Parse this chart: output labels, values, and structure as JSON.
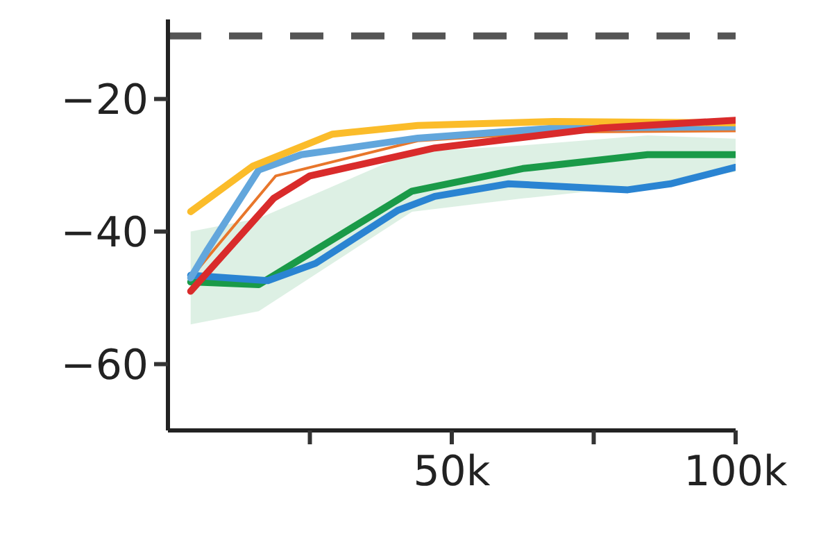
{
  "chart_data": {
    "type": "line",
    "marker": "none",
    "xlim": [
      0,
      100000
    ],
    "xticks": [
      {
        "value": 25000,
        "label": null
      },
      {
        "value": 50000,
        "label": "50k"
      },
      {
        "value": 75000,
        "label": null
      },
      {
        "value": 100000,
        "label": "100k"
      }
    ],
    "ylim": [
      -70,
      -8
    ],
    "yticks": [
      {
        "value": -20,
        "label": "−20"
      },
      {
        "value": -40,
        "label": "−40"
      },
      {
        "value": -60,
        "label": "−60"
      }
    ],
    "ref_lines": [
      {
        "axis": "y",
        "value": -10.5,
        "color": "#555555",
        "line_style": "dashed"
      }
    ],
    "series": [
      {
        "color": "#1a9a48",
        "x": [
          4000,
          16000,
          43000,
          62500,
          84500,
          100000
        ],
        "values": [
          -47.6,
          -48,
          -33.9,
          -30.5,
          -28.4,
          -28.4
        ],
        "lower": [
          -54,
          -52,
          -37,
          -35,
          -33,
          -31
        ],
        "upper": [
          -40,
          -38,
          -28,
          -27,
          -25.5,
          -26
        ]
      },
      {
        "color": "#2a84d2",
        "x": [
          4000,
          17600,
          26000,
          40500,
          47000,
          60000,
          81000,
          88500,
          100000
        ],
        "values": [
          -46.6,
          -47.4,
          -44.8,
          -36.8,
          -34.7,
          -32.8,
          -33.7,
          -32.8,
          -30.3
        ]
      },
      {
        "color": "#e8762b",
        "x": [
          4000,
          7000,
          19000,
          44000,
          68000,
          100000
        ],
        "values": [
          -47,
          -43.9,
          -31.6,
          -26.3,
          -25,
          -24.8
        ]
      },
      {
        "color": "#62a6dc",
        "x": [
          4000,
          7000,
          16000,
          23500,
          44000,
          68000,
          100000
        ],
        "values": [
          -47,
          -42.7,
          -30.7,
          -28.4,
          -25.9,
          -24.4,
          -24.2
        ]
      },
      {
        "color": "#fbbc2a",
        "x": [
          4000,
          15000,
          29000,
          44000,
          68000,
          100000
        ],
        "values": [
          -37,
          -30.1,
          -25.3,
          -24,
          -23.4,
          -23.6
        ]
      },
      {
        "color": "#d92b2b",
        "x": [
          4000,
          18600,
          25000,
          47000,
          76000,
          100000
        ],
        "values": [
          -49,
          -35,
          -31.6,
          -27.4,
          -24.4,
          -23.2
        ]
      }
    ]
  }
}
